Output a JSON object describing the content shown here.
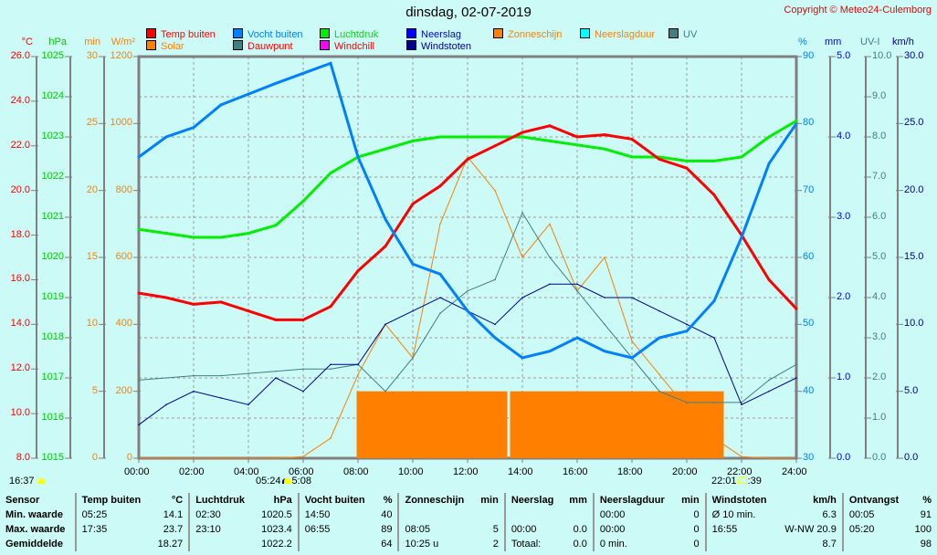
{
  "header": {
    "title": "dinsdag, 02-07-2019",
    "copyright": "Copyright © Meteo24-Culemborg"
  },
  "legend": [
    {
      "label": "Temp buiten",
      "color": "#ff0000",
      "text": "#ff0000"
    },
    {
      "label": "Vocht buiten",
      "color": "#0080ff",
      "text": "#0080ff"
    },
    {
      "label": "Luchtdruk",
      "color": "#00ee00",
      "text": "#00dd00"
    },
    {
      "label": "Neerslag",
      "color": "#0000ff",
      "text": "#0000ff"
    },
    {
      "label": "Zonneschijn",
      "color": "#ff8000",
      "text": "#ff8000"
    },
    {
      "label": "Neerslagduur",
      "color": "#00ffff",
      "text": "#ff8000"
    },
    {
      "label": "UV",
      "color": "#408080",
      "text": "#408080"
    },
    {
      "label": "Solar",
      "color": "#ff8000",
      "text": "#ff8000"
    },
    {
      "label": "Dauwpunt",
      "color": "#408080",
      "text": "#ff0000"
    },
    {
      "label": "Windchill",
      "color": "#ff00ff",
      "text": "#ff0000"
    },
    {
      "label": "Windstoten",
      "color": "#000090",
      "text": "#000090"
    }
  ],
  "axes": {
    "left": [
      {
        "unit": "°C",
        "color": "#ff0000",
        "ticks": [
          "8.0",
          "10.0",
          "12.0",
          "14.0",
          "16.0",
          "18.0",
          "20.0",
          "22.0",
          "24.0",
          "26.0"
        ]
      },
      {
        "unit": "hPa",
        "color": "#00cc00",
        "ticks": [
          "1015",
          "1016",
          "1017",
          "1018",
          "1019",
          "1020",
          "1021",
          "1022",
          "1023",
          "1024",
          "1025"
        ]
      },
      {
        "unit": "min",
        "color": "#ff8000",
        "ticks": [
          "0",
          "5",
          "10",
          "15",
          "20",
          "25",
          "30"
        ]
      },
      {
        "unit": "W/m²",
        "color": "#ff8000",
        "ticks": [
          "0",
          "200",
          "400",
          "600",
          "800",
          "1000",
          "1200"
        ]
      }
    ],
    "right": [
      {
        "unit": "%",
        "color": "#0080ff",
        "ticks": [
          "30",
          "40",
          "50",
          "60",
          "70",
          "80",
          "90"
        ]
      },
      {
        "unit": "mm",
        "color": "#0000ff",
        "ticks": [
          "0.0",
          "1.0",
          "2.0",
          "3.0",
          "4.0",
          "5.0"
        ]
      },
      {
        "unit": "UV-I",
        "color": "#408080",
        "ticks": [
          "0.0",
          "1.0",
          "2.0",
          "3.0",
          "4.0",
          "5.0",
          "6.0",
          "7.0",
          "8.0",
          "9.0",
          "10.0"
        ]
      },
      {
        "unit": "km/h",
        "color": "#000090",
        "ticks": [
          "0.0",
          "5.0",
          "10.0",
          "15.0",
          "20.0",
          "25.0",
          "30.0"
        ]
      }
    ],
    "x_ticks": [
      "00:00",
      "02:00",
      "04:00",
      "06:00",
      "08:00",
      "10:00",
      "12:00",
      "14:00",
      "16:00",
      "18:00",
      "20:00",
      "22:00",
      "24:00"
    ]
  },
  "sun": {
    "prev_set": "16:37",
    "rise": "05:24",
    "rise_b": "5:08",
    "set": "22:01",
    "set_b": ":39"
  },
  "chart_data": {
    "type": "line",
    "title": "dinsdag, 02-07-2019",
    "x_hours": [
      0,
      1,
      2,
      3,
      4,
      5,
      6,
      7,
      8,
      9,
      10,
      11,
      12,
      13,
      14,
      15,
      16,
      17,
      18,
      19,
      20,
      21,
      22,
      23,
      24
    ],
    "series": [
      {
        "name": "Temp buiten",
        "axis": "°C",
        "range": [
          8,
          26
        ],
        "color": "#ff0000",
        "values": [
          15.4,
          15.2,
          14.9,
          15.0,
          14.6,
          14.2,
          14.2,
          14.8,
          16.4,
          17.5,
          19.4,
          20.2,
          21.4,
          22.0,
          22.6,
          22.9,
          22.4,
          22.5,
          22.3,
          21.4,
          21.0,
          19.8,
          18.0,
          16.0,
          14.7
        ]
      },
      {
        "name": "Vocht buiten",
        "axis": "%",
        "range": [
          30,
          90
        ],
        "color": "#0080ff",
        "values": [
          75,
          78,
          79.4,
          82.8,
          84.4,
          86,
          87.5,
          89,
          75,
          65.7,
          59,
          57.5,
          52,
          48,
          45,
          46,
          48,
          46,
          45,
          48,
          49,
          53.5,
          63,
          74,
          80
        ]
      },
      {
        "name": "Luchtdruk",
        "axis": "hPa",
        "range": [
          1015,
          1025
        ],
        "color": "#00ee00",
        "values": [
          1020.7,
          1020.6,
          1020.5,
          1020.5,
          1020.6,
          1020.8,
          1021.4,
          1022.1,
          1022.5,
          1022.7,
          1022.9,
          1023.0,
          1023.0,
          1023.0,
          1023.0,
          1022.9,
          1022.8,
          1022.7,
          1022.5,
          1022.5,
          1022.4,
          1022.4,
          1022.5,
          1023.0,
          1023.4
        ]
      },
      {
        "name": "Solar",
        "axis": "W/m²",
        "range": [
          0,
          1200
        ],
        "color": "#ff8000",
        "values": [
          0,
          0,
          0,
          0,
          0,
          0,
          5,
          60,
          250,
          400,
          300,
          700,
          900,
          800,
          600,
          700,
          500,
          600,
          350,
          250,
          150,
          60,
          5,
          0,
          0
        ]
      },
      {
        "name": "Windstoten",
        "axis": "km/h",
        "range": [
          0,
          30
        ],
        "color": "#000090",
        "values": [
          2.5,
          4,
          5,
          4.5,
          4,
          6,
          5,
          7,
          7,
          10,
          11,
          12,
          11,
          10,
          12,
          13,
          13,
          12,
          12,
          11,
          10,
          9,
          4,
          5,
          6
        ]
      },
      {
        "name": "Dauwpunt",
        "axis": "°C",
        "range": [
          8,
          26
        ],
        "color": "#408080",
        "values": [
          11.5,
          11.6,
          11.7,
          11.7,
          11.8,
          11.9,
          12.0,
          12.0,
          12.2,
          11.0,
          12.5,
          14.5,
          15.5,
          16.0,
          19.0,
          17.0,
          15.5,
          14.0,
          12.5,
          11.0,
          10.5,
          10.5,
          10.5,
          11.5,
          12.2
        ]
      }
    ],
    "zonneschijn_intervals_hours": [
      [
        7.95,
        13.45
      ],
      [
        13.55,
        21.35
      ]
    ],
    "zonneschijn_level_min": 5
  },
  "table": {
    "headers": [
      "Sensor",
      "Temp buiten",
      "°C",
      "Luchtdruk",
      "hPa",
      "Vocht buiten",
      "%",
      "Zonneschijn",
      "min",
      "Neerslag",
      "mm",
      "Neerslagduur",
      "min",
      "Windstoten",
      "km/h",
      "Ontvangst",
      "%"
    ],
    "rows": [
      [
        "Min. waarde",
        "05:25",
        "14.1",
        "02:30",
        "1020.5",
        "14:50",
        "40",
        "",
        "",
        "",
        "",
        "00:00",
        "0",
        "Ø 10 min.",
        "6.3",
        "00:05",
        "91"
      ],
      [
        "Max. waarde",
        "17:35",
        "23.7",
        "23:10",
        "1023.4",
        "06:55",
        "89",
        "08:05",
        "5",
        "00:00",
        "0.0",
        "00:00",
        "0",
        "16:55",
        "W-NW 20.9",
        "05:20",
        "100"
      ],
      [
        "Gemiddelde",
        "",
        "18.27",
        "",
        "1022.2",
        "",
        "64",
        "10:25 u",
        "2",
        "Totaal:",
        "0.0",
        "0 min.",
        "0",
        "",
        "8.7",
        "",
        "98"
      ]
    ]
  }
}
